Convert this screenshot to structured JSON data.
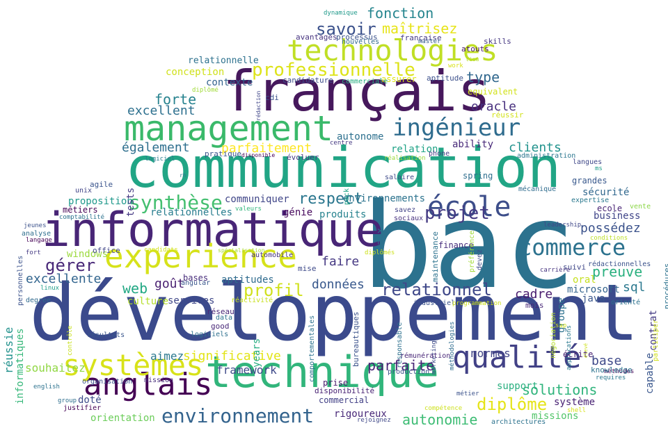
{
  "words": [
    {
      "text": "bac",
      "color": "#2c728e"
    },
    {
      "text": "développement",
      "color": "#3b4a8c"
    },
    {
      "text": "communication",
      "color": "#21a585"
    },
    {
      "text": "informatique",
      "color": "#482576"
    },
    {
      "text": "français",
      "color": "#46185c"
    },
    {
      "text": "technique",
      "color": "#31b57b"
    },
    {
      "text": "management",
      "color": "#3ab96a"
    },
    {
      "text": "experience",
      "color": "#d6e21a"
    },
    {
      "text": "technologies",
      "color": "#c0df25"
    },
    {
      "text": "qualité",
      "color": "#424186"
    },
    {
      "text": "anglais",
      "color": "#440154"
    },
    {
      "text": "systèmes",
      "color": "#d8e219"
    },
    {
      "text": "ingénieur",
      "color": "#2f6c8e"
    },
    {
      "text": "école",
      "color": "#3d4e8a"
    },
    {
      "text": "commerce",
      "color": "#2c728e"
    },
    {
      "text": "environnement",
      "color": "#33638d"
    },
    {
      "text": "professionnelle",
      "color": "#dde318"
    },
    {
      "text": "synthèse",
      "color": "#44bf70"
    },
    {
      "text": "savoir",
      "color": "#3b518b"
    },
    {
      "text": "maîtrisez",
      "color": "#e7e419"
    },
    {
      "text": "fonction",
      "color": "#25858e"
    },
    {
      "text": "relationnel",
      "color": "#3f4889"
    },
    {
      "text": "projet",
      "color": "#443a83"
    },
    {
      "text": "respect",
      "color": "#2a768e"
    },
    {
      "text": "diplôme",
      "color": "#e5e419"
    },
    {
      "text": "qualité2",
      "color": "#424186"
    },
    {
      "text": "forte",
      "color": "#26828e"
    },
    {
      "text": "gérer",
      "color": "#482878"
    },
    {
      "text": "profil",
      "color": "#d0e11c"
    },
    {
      "text": "significative",
      "color": "#e2e418"
    },
    {
      "text": "solutions",
      "color": "#2fb47c"
    },
    {
      "text": "autonomie",
      "color": "#3dbc74"
    },
    {
      "text": "parfaite",
      "color": "#482475"
    },
    {
      "text": "excellent",
      "color": "#2d708e"
    },
    {
      "text": "excellente",
      "color": "#32658e"
    },
    {
      "text": "également",
      "color": "#2e6f8e"
    },
    {
      "text": "parfaitement",
      "color": "#fde725"
    },
    {
      "text": "clients",
      "color": "#20928c"
    },
    {
      "text": "preuve",
      "color": "#2ab07f"
    },
    {
      "text": "possédez",
      "color": "#3b528b"
    },
    {
      "text": "oracle",
      "color": "#472f7d"
    },
    {
      "text": "type",
      "color": "#31688e"
    },
    {
      "text": "faire",
      "color": "#453882"
    },
    {
      "text": "données",
      "color": "#38588c"
    },
    {
      "text": "goût",
      "color": "#481f70"
    },
    {
      "text": "web",
      "color": "#22a884"
    },
    {
      "text": "base",
      "color": "#3e4989"
    },
    {
      "text": "cadre",
      "color": "#481b6d"
    },
    {
      "text": "sql",
      "color": "#2a788e"
    },
    {
      "text": "conception",
      "color": "#d0e11c"
    },
    {
      "text": "relationnelle",
      "color": "#2d718e"
    },
    {
      "text": "contexte",
      "color": "#33638d"
    },
    {
      "text": "relationnelles",
      "color": "#287d8e"
    },
    {
      "text": "communiquer",
      "color": "#404688"
    },
    {
      "text": "environnements",
      "color": "#2c738e"
    },
    {
      "text": "proposition",
      "color": "#1f988b"
    },
    {
      "text": "réussie",
      "color": "#21918c"
    },
    {
      "text": "informatiques",
      "color": "#35b779"
    },
    {
      "text": "souhaitez",
      "color": "#90d743"
    },
    {
      "text": "aimez",
      "color": "#2a788e"
    },
    {
      "text": "framework",
      "color": "#3e4989"
    },
    {
      "text": "rigoureux",
      "color": "#482878"
    },
    {
      "text": "orientation",
      "color": "#6ccd5a"
    },
    {
      "text": "doté",
      "color": "#3e4c8a"
    },
    {
      "text": "normes",
      "color": "#414487"
    },
    {
      "text": "support",
      "color": "#29af7f"
    },
    {
      "text": "système",
      "color": "#482173"
    },
    {
      "text": "missions",
      "color": "#52c569"
    },
    {
      "text": "microsoft",
      "color": "#33638d"
    },
    {
      "text": "java",
      "color": "#39568c"
    },
    {
      "text": "aptitudes",
      "color": "#2f6b8e"
    },
    {
      "text": "services",
      "color": "#3f4788"
    },
    {
      "text": "culture",
      "color": "#b5de2b"
    },
    {
      "text": "windows",
      "color": "#9bd93c"
    },
    {
      "text": "tests",
      "color": "#443983"
    },
    {
      "text": "sécurité",
      "color": "#31688e"
    },
    {
      "text": "business",
      "color": "#404588"
    },
    {
      "text": "produits",
      "color": "#26828e"
    },
    {
      "text": "génie",
      "color": "#46085c"
    },
    {
      "text": "réseaux",
      "color": "#2c718e"
    },
    {
      "text": "relation",
      "color": "#20a386"
    },
    {
      "text": "ability",
      "color": "#482979"
    },
    {
      "text": "autonome",
      "color": "#2d708e"
    },
    {
      "text": "oral",
      "color": "#c5e021"
    },
    {
      "text": "capable",
      "color": "#39568c"
    },
    {
      "text": "contrat",
      "color": "#443b84"
    },
    {
      "text": "groupe",
      "color": "#2d718e"
    },
    {
      "text": "écrite",
      "color": "#482071"
    },
    {
      "text": "equivalent",
      "color": "#d2e21b"
    },
    {
      "text": "candidature",
      "color": "#3d4d8a"
    },
    {
      "text": "assurer",
      "color": "#dde318"
    },
    {
      "text": "aptitude",
      "color": "#3c508b"
    },
    {
      "text": "atouts",
      "color": "#471365"
    },
    {
      "text": "skills",
      "color": "#453781"
    },
    {
      "text": "avantages",
      "color": "#46337f"
    },
    {
      "text": "processus",
      "color": "#3b528b"
    },
    {
      "text": "française",
      "color": "#443983"
    },
    {
      "text": "nouvelles",
      "color": "#30698e"
    },
    {
      "text": "master",
      "color": "#35608d"
    },
    {
      "text": "dynamique",
      "color": "#1f998a"
    },
    {
      "text": "work",
      "color": "#d8e219"
    },
    {
      "text": "lieu",
      "color": "#b5de2b"
    },
    {
      "text": "cdi",
      "color": "#3b528b"
    },
    {
      "text": "rédaction",
      "color": "#404688"
    },
    {
      "text": "diplômé",
      "color": "#a0da39"
    },
    {
      "text": "commerciale",
      "color": "#27ad81"
    },
    {
      "text": "réussir",
      "color": "#d2e21b"
    },
    {
      "text": "centre",
      "color": "#453882"
    },
    {
      "text": "évoluer",
      "color": "#453882"
    },
    {
      "text": "phone",
      "color": "#443a83"
    },
    {
      "text": "réalisation",
      "color": "#9bd93c"
    },
    {
      "text": "logiciel",
      "color": "#287c8e"
    },
    {
      "text": "disponible",
      "color": "#440154"
    },
    {
      "text": "pratique",
      "color": "#3a548c"
    },
    {
      "text": "administration",
      "color": "#2a768e"
    },
    {
      "text": "langues",
      "color": "#3f4788"
    },
    {
      "text": "ms",
      "color": "#1f9e89"
    },
    {
      "text": "spring",
      "color": "#2e6e8e"
    },
    {
      "text": "salaire",
      "color": "#3e4a89"
    },
    {
      "text": "pack",
      "color": "#20a386"
    },
    {
      "text": "grandes",
      "color": "#38588c"
    },
    {
      "text": "mécanique",
      "color": "#2f6c8e"
    },
    {
      "text": "expertise",
      "color": "#2a788e"
    },
    {
      "text": "vente",
      "color": "#8bd646"
    },
    {
      "text": "ecole",
      "color": "#482475"
    },
    {
      "text": "leadership",
      "color": "#3f4788"
    },
    {
      "text": "conditions",
      "color": "#bddf26"
    },
    {
      "text": "agile",
      "color": "#3a548c"
    },
    {
      "text": "unix",
      "color": "#414487"
    },
    {
      "text": "rh",
      "color": "#2a788e"
    },
    {
      "text": "métiers",
      "color": "#440154"
    },
    {
      "text": "comptabilité",
      "color": "#2c728e"
    },
    {
      "text": "valeurs",
      "color": "#31b57b"
    },
    {
      "text": "savez",
      "color": "#414287"
    },
    {
      "text": "sociaux",
      "color": "#46307e"
    },
    {
      "text": "finance",
      "color": "#472e7c"
    },
    {
      "text": "maintenance",
      "color": "#2c728e"
    },
    {
      "text": "préférence",
      "color": "#a2da37"
    },
    {
      "text": "devez",
      "color": "#3e4a89"
    },
    {
      "text": "jeunes",
      "color": "#3b518b"
    },
    {
      "text": "analyse",
      "color": "#2e6e8e"
    },
    {
      "text": "langage",
      "color": "#440154"
    },
    {
      "text": "fort",
      "color": "#443983"
    },
    {
      "text": "office",
      "color": "#404588"
    },
    {
      "text": "candidats",
      "color": "#d2e21b"
    },
    {
      "text": "spécialisation",
      "color": "#a5db36"
    },
    {
      "text": "automobile",
      "color": "#46337f"
    },
    {
      "text": "diplômés",
      "color": "#cde11d"
    },
    {
      "text": "mise",
      "color": "#3e4a89"
    },
    {
      "text": "bases",
      "color": "#472c7a"
    },
    {
      "text": "angular",
      "color": "#39568c"
    },
    {
      "text": "personnelles",
      "color": "#3b528b"
    },
    {
      "text": "linux",
      "color": "#1f9e89"
    },
    {
      "text": "degree",
      "color": "#30698e"
    },
    {
      "text": "réseau",
      "color": "#482677"
    },
    {
      "text": "data",
      "color": "#2c728e"
    },
    {
      "text": "réactivité",
      "color": "#c8e020"
    },
    {
      "text": "good",
      "color": "#482878"
    },
    {
      "text": "logiciels",
      "color": "#2d708e"
    },
    {
      "text": "résultats",
      "color": "#39568c"
    },
    {
      "text": "years",
      "color": "#27ad81"
    },
    {
      "text": "contrôle",
      "color": "#c8e020"
    },
    {
      "text": "comportementales",
      "color": "#2c728e"
    },
    {
      "text": "responsable",
      "color": "#2d708e"
    },
    {
      "text": "industriel",
      "color": "#3b528b"
    },
    {
      "text": "programmation",
      "color": "#cde11d"
    },
    {
      "text": "mois",
      "color": "#482878"
    },
    {
      "text": "négociation",
      "color": "#b5de2b"
    },
    {
      "text": "orienté",
      "color": "#2c728e"
    },
    {
      "text": "participer",
      "color": "#d0e11c"
    },
    {
      "text": "procédures",
      "color": "#2c728e"
    },
    {
      "text": "rédactionnelles",
      "color": "#3b528b"
    },
    {
      "text": "suivi",
      "color": "#3f4788"
    },
    {
      "text": "carrière",
      "color": "#46337f"
    },
    {
      "text": "applications",
      "color": "#2a788e"
    },
    {
      "text": "sap",
      "color": "#d0e11c"
    },
    {
      "text": "méthodes",
      "color": "#440154"
    },
    {
      "text": "méthodologies",
      "color": "#2f6c8e"
    },
    {
      "text": "marketing",
      "color": "#3e4a89"
    },
    {
      "text": "rémunération",
      "color": "#482677"
    },
    {
      "text": "bureautiques",
      "color": "#3b528b"
    },
    {
      "text": "prise",
      "color": "#481a6c"
    },
    {
      "text": "disponibilité",
      "color": "#482173"
    },
    {
      "text": "commercial",
      "color": "#424086"
    },
    {
      "text": "production",
      "color": "#3b528b"
    },
    {
      "text": "knowledge",
      "color": "#2c728e"
    },
    {
      "text": "requires",
      "color": "#2a788e"
    },
    {
      "text": "mission",
      "color": "#472d7b"
    },
    {
      "text": "organisation",
      "color": "#3b518b"
    },
    {
      "text": "english",
      "color": "#2c728e"
    },
    {
      "text": "group",
      "color": "#2e6f8e"
    },
    {
      "text": "justifier",
      "color": "#440154"
    },
    {
      "text": "métier",
      "color": "#3b528b"
    },
    {
      "text": "compétence",
      "color": "#cde11d"
    },
    {
      "text": "rejoignez",
      "color": "#3f4788"
    },
    {
      "text": "architectures",
      "color": "#2c728e"
    },
    {
      "text": "shell",
      "color": "#d8e219"
    },
    {
      "text": "élevé",
      "color": "#cde11d"
    }
  ]
}
